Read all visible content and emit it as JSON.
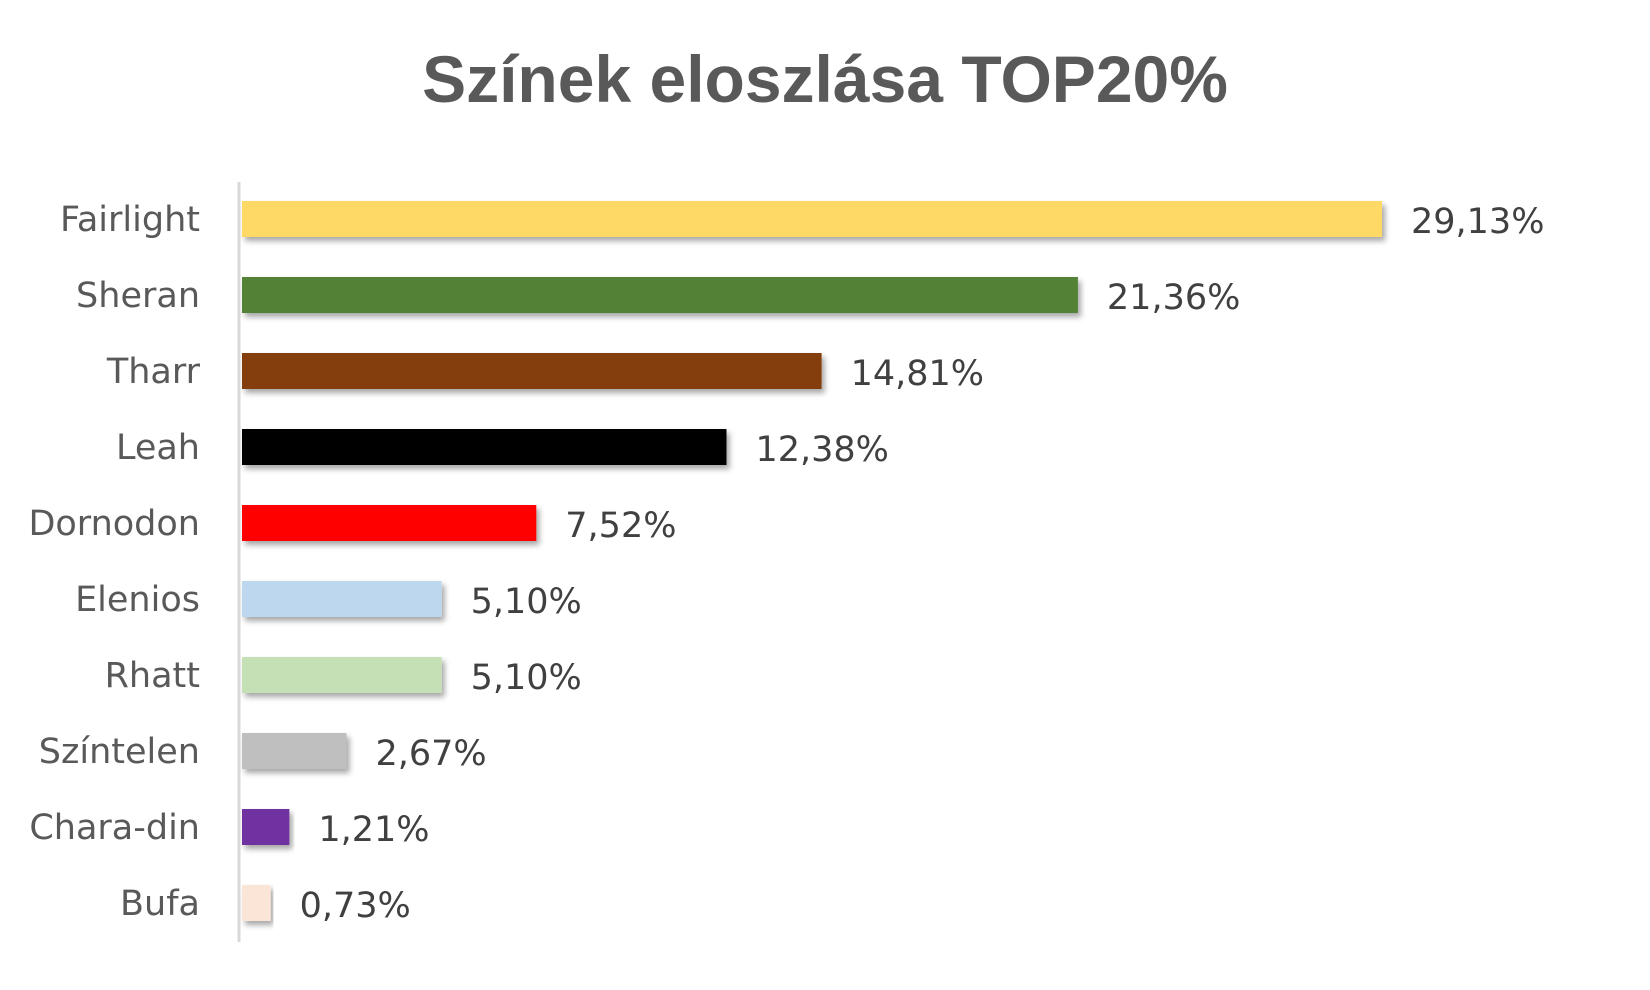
{
  "chart_data": {
    "type": "bar",
    "orientation": "horizontal",
    "title": "Színek eloszlása TOP20%",
    "xlabel": "",
    "ylabel": "",
    "xlim": [
      0,
      30
    ],
    "grid": false,
    "legend": "none",
    "categories": [
      "Fairlight",
      "Sheran",
      "Tharr",
      "Leah",
      "Dornodon",
      "Elenios",
      "Rhatt",
      "Színtelen",
      "Chara-din",
      "Bufa"
    ],
    "values": [
      29.13,
      21.36,
      14.81,
      12.38,
      7.52,
      5.1,
      5.1,
      2.67,
      1.21,
      0.73
    ],
    "value_labels": [
      "29,13%",
      "21,36%",
      "14,81%",
      "12,38%",
      "7,52%",
      "5,10%",
      "5,10%",
      "2,67%",
      "1,21%",
      "0,73%"
    ],
    "colors": [
      "#FFD966",
      "#538135",
      "#843C0C",
      "#000000",
      "#FF0000",
      "#BDD7EE",
      "#C5E0B4",
      "#BFBFBF",
      "#7030A0",
      "#FBE5D6"
    ]
  }
}
